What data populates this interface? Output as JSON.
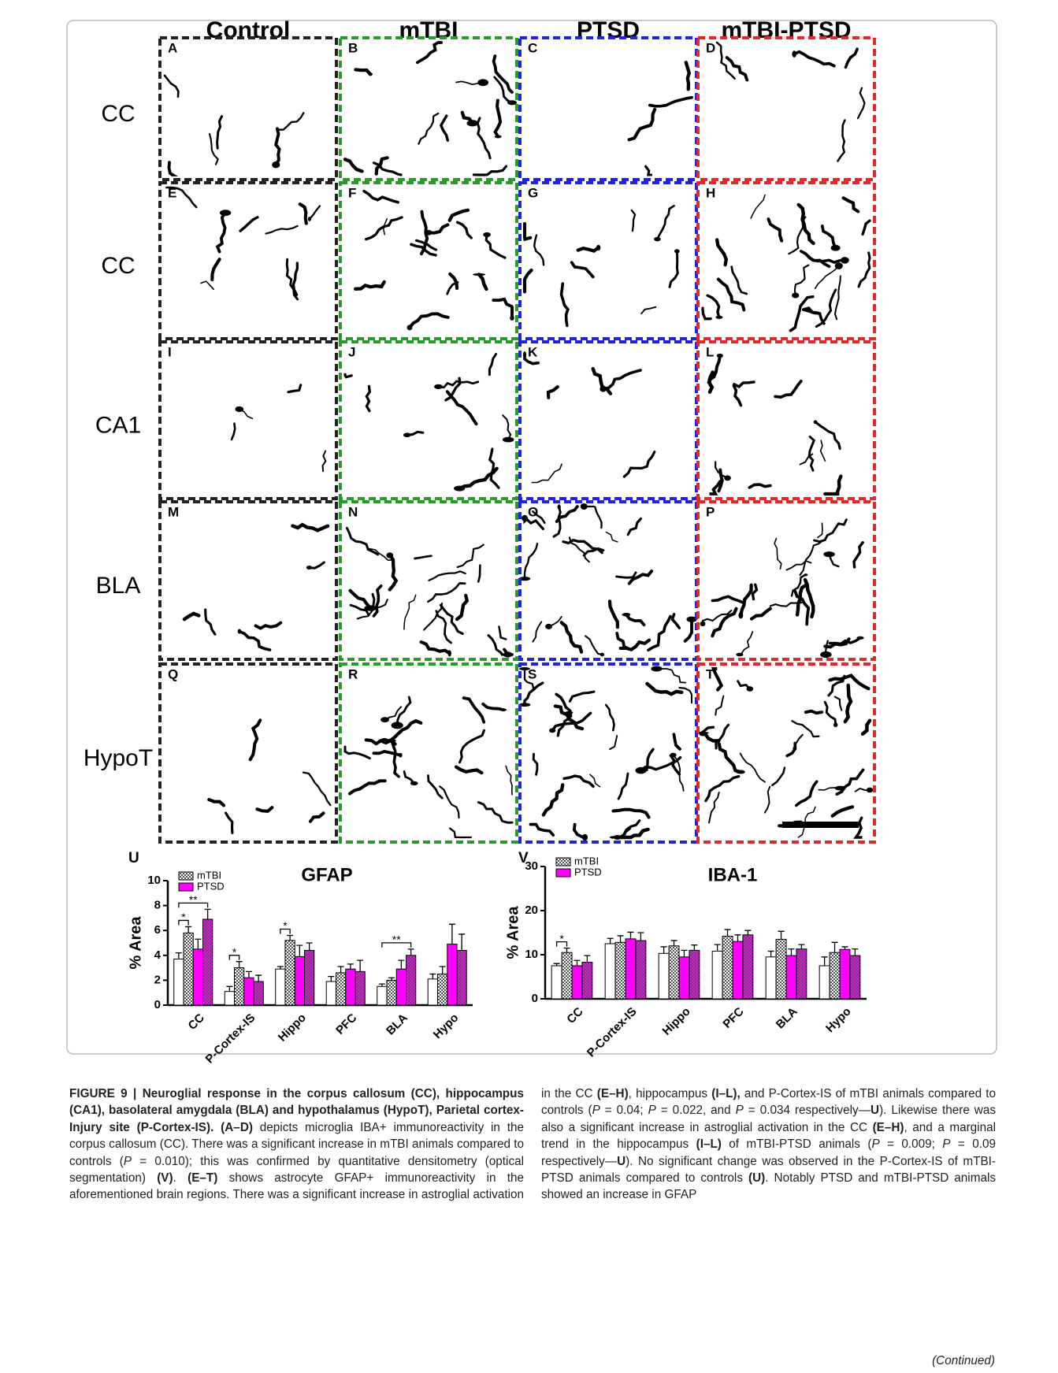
{
  "columns": [
    {
      "label": "Control",
      "color": "#222222"
    },
    {
      "label": "mTBI",
      "color": "#2a9a2a"
    },
    {
      "label": "PTSD",
      "color": "#2323dd"
    },
    {
      "label": "mTBI-PTSD",
      "color": "#e02a2a"
    }
  ],
  "rows": [
    "CC",
    "CC",
    "CA1",
    "BLA",
    "HypoT"
  ],
  "panels": [
    [
      "A",
      "B",
      "C",
      "D"
    ],
    [
      "E",
      "F",
      "G",
      "H"
    ],
    [
      "I",
      "J",
      "K",
      "L"
    ],
    [
      "M",
      "N",
      "O",
      "P"
    ],
    [
      "Q",
      "R",
      "S",
      "T"
    ]
  ],
  "chart_data": [
    {
      "type": "bar",
      "panel": "U",
      "title": "GFAP",
      "ylabel": "% Area",
      "categories": [
        "CC",
        "P-Cortex-IS",
        "Hippo",
        "PFC",
        "BLA",
        "Hypo"
      ],
      "series": [
        {
          "color": "#ffffff",
          "values": [
            3.7,
            1.1,
            2.9,
            1.9,
            1.5,
            2.1
          ],
          "errors": [
            0.5,
            0.4,
            0.2,
            0.4,
            0.2,
            0.4
          ]
        },
        {
          "name": "mTBI",
          "color": "#ffffff",
          "hatch": true,
          "values": [
            5.8,
            3.0,
            5.2,
            2.6,
            2.0,
            2.5
          ],
          "errors": [
            0.5,
            0.5,
            0.4,
            0.5,
            0.2,
            0.6
          ]
        },
        {
          "name": "PTSD",
          "color": "#ff00ff",
          "values": [
            4.5,
            2.2,
            3.9,
            2.9,
            2.9,
            4.9
          ],
          "errors": [
            0.8,
            0.5,
            0.9,
            0.4,
            0.7,
            1.6
          ]
        },
        {
          "color": "#ff00ff",
          "hatch": true,
          "values": [
            6.9,
            1.9,
            4.4,
            2.7,
            4.0,
            4.4
          ],
          "errors": [
            0.8,
            0.5,
            0.6,
            0.9,
            0.5,
            1.3
          ]
        }
      ],
      "ylim": [
        0,
        10
      ],
      "yticks": [
        0,
        2,
        4,
        6,
        8,
        10
      ],
      "annotations": [
        "*",
        "**",
        "*",
        "*",
        "**"
      ]
    },
    {
      "type": "bar",
      "panel": "V",
      "title": "IBA-1",
      "ylabel": "% Area",
      "categories": [
        "CC",
        "P-Cortex-IS",
        "Hippo",
        "PFC",
        "BLA",
        "Hypo"
      ],
      "series": [
        {
          "color": "#ffffff",
          "values": [
            7.5,
            12.5,
            10.3,
            10.8,
            9.5,
            7.5
          ],
          "errors": [
            0.5,
            1.2,
            1.5,
            1.5,
            1.3,
            2.0
          ]
        },
        {
          "name": "mTBI",
          "color": "#ffffff",
          "hatch": true,
          "values": [
            10.5,
            12.8,
            12.0,
            14.2,
            13.5,
            10.5
          ],
          "errors": [
            1.0,
            1.5,
            1.2,
            1.5,
            1.8,
            2.3
          ]
        },
        {
          "name": "PTSD",
          "color": "#ff00ff",
          "values": [
            7.5,
            13.6,
            9.5,
            13.0,
            9.8,
            11.2
          ],
          "errors": [
            1.2,
            1.5,
            1.5,
            1.5,
            1.5,
            0.6
          ]
        },
        {
          "color": "#ff00ff",
          "hatch": true,
          "values": [
            8.3,
            13.2,
            11.0,
            14.5,
            11.3,
            9.8
          ],
          "errors": [
            1.5,
            1.8,
            1.2,
            1.0,
            1.0,
            1.5
          ]
        }
      ],
      "ylim": [
        0,
        30
      ],
      "yticks": [
        0,
        10,
        20,
        30
      ],
      "annotations": [
        "*"
      ]
    }
  ],
  "caption": [
    {
      "text": "FIGURE 9 | Neuroglial response in the corpus callosum (CC), hippocampus (CA1), basolateral amygdala (BLA) and hypothalamus (HypoT), Parietal cortex- Injury site (P-Cortex-IS). (A–D)",
      "style": "b"
    },
    {
      "text": " depicts microglia IBA+ immunoreactivity in the corpus callosum (CC). There was a significant increase in mTBI animals compared to controls ("
    },
    {
      "text": "P",
      "style": "i"
    },
    {
      "text": " = 0.010); this was confirmed by quantitative densitometry (optical segmentation) "
    },
    {
      "text": "(V)",
      "style": "b"
    },
    {
      "text": ". "
    },
    {
      "text": "(E–T)",
      "style": "b"
    },
    {
      "text": " shows astrocyte GFAP+ immunoreactivity in the aforementioned brain regions. There was a significant increase in astroglial activation in the CC "
    },
    {
      "text": "(E–H)",
      "style": "b"
    },
    {
      "text": ", hippocampus "
    },
    {
      "text": "(I–L),",
      "style": "b"
    },
    {
      "text": " and P-Cortex-IS of mTBI animals compared to controls ("
    },
    {
      "text": "P",
      "style": "i"
    },
    {
      "text": " = 0.04; "
    },
    {
      "text": "P",
      "style": "i"
    },
    {
      "text": " = 0.022, and "
    },
    {
      "text": "P",
      "style": "i"
    },
    {
      "text": " = 0.034 respectively—"
    },
    {
      "text": "U",
      "style": "b"
    },
    {
      "text": "). Likewise there was also a significant increase in astroglial activation in the CC "
    },
    {
      "text": "(E–H)",
      "style": "b"
    },
    {
      "text": ", and a marginal trend in the hippocampus "
    },
    {
      "text": "(I–L)",
      "style": "b"
    },
    {
      "text": " of mTBI-PTSD animals ("
    },
    {
      "text": "P",
      "style": "i"
    },
    {
      "text": " = 0.009; "
    },
    {
      "text": "P",
      "style": "i"
    },
    {
      "text": " = 0.09 respectively—"
    },
    {
      "text": "U",
      "style": "b"
    },
    {
      "text": "). No significant change was observed in the P-Cortex-IS of mTBI-PTSD animals compared to controls "
    },
    {
      "text": "(U)",
      "style": "b"
    },
    {
      "text": ". Notably PTSD and mTBI-PTSD animals showed an increase in GFAP"
    }
  ],
  "continued": "(Continued)"
}
